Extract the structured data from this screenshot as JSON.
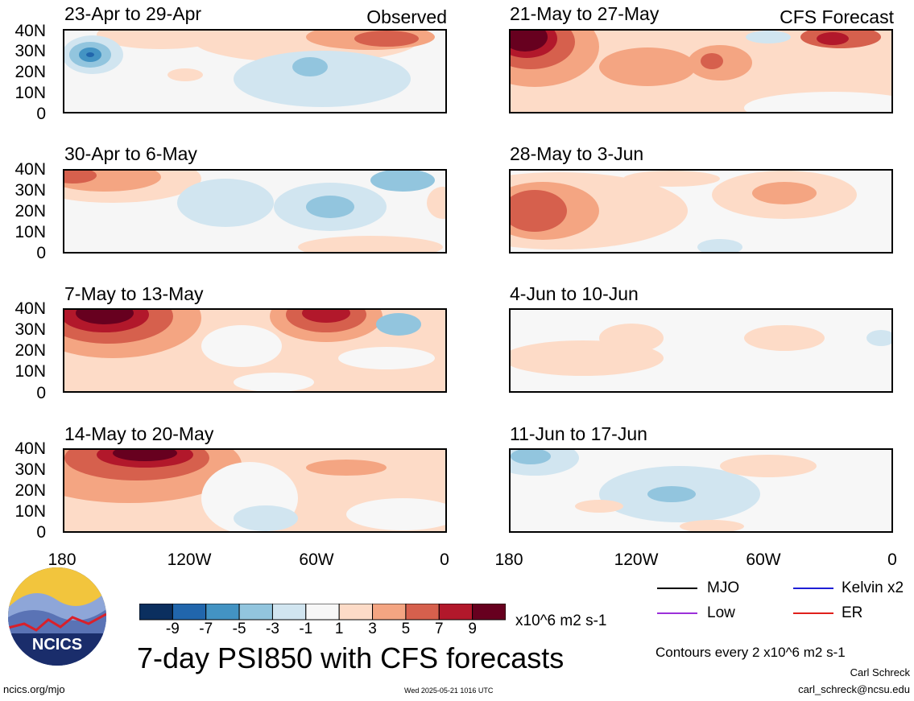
{
  "header": {
    "left_label": "Observed",
    "right_label": "CFS Forecast"
  },
  "panels": [
    {
      "period": "23-Apr to 29-Apr"
    },
    {
      "period": "30-Apr to 6-May"
    },
    {
      "period": "7-May to 13-May"
    },
    {
      "period": "14-May to 20-May"
    },
    {
      "period": "21-May to 27-May"
    },
    {
      "period": "28-May to 3-Jun"
    },
    {
      "period": "4-Jun to 10-Jun"
    },
    {
      "period": "11-Jun to 17-Jun"
    }
  ],
  "y_ticks": [
    "40N",
    "30N",
    "20N",
    "10N",
    "0"
  ],
  "x_ticks": [
    "180",
    "120W",
    "60W",
    "0"
  ],
  "lines_legend": [
    {
      "label": "MJO",
      "color": "#000000"
    },
    {
      "label": "Kelvin x2",
      "color": "#1f1fd6"
    },
    {
      "label": "Low",
      "color": "#9b30d9"
    },
    {
      "label": "ER",
      "color": "#e0201b"
    }
  ],
  "colorbar": {
    "ticks": [
      "-9",
      "-7",
      "-5",
      "-3",
      "-1",
      "1",
      "3",
      "5",
      "7",
      "9"
    ],
    "colors": [
      "#0b2f5f",
      "#2166ac",
      "#4393c3",
      "#92c5de",
      "#d1e5f0",
      "#f7f7f7",
      "#fddbc7",
      "#f4a582",
      "#d6604d",
      "#b2182b",
      "#67001f"
    ],
    "units": "x10^6 m2 s-1"
  },
  "title": "7-day PSI850 with CFS forecasts",
  "contours_note": "Contours every 2 x10^6 m2 s-1",
  "author": "Carl Schreck",
  "email": "carl_schreck@ncsu.edu",
  "site": "ncics.org/mjo",
  "timestamp": "Wed 2025-05-21 1016 UTC",
  "logo_text": "NCICS"
}
